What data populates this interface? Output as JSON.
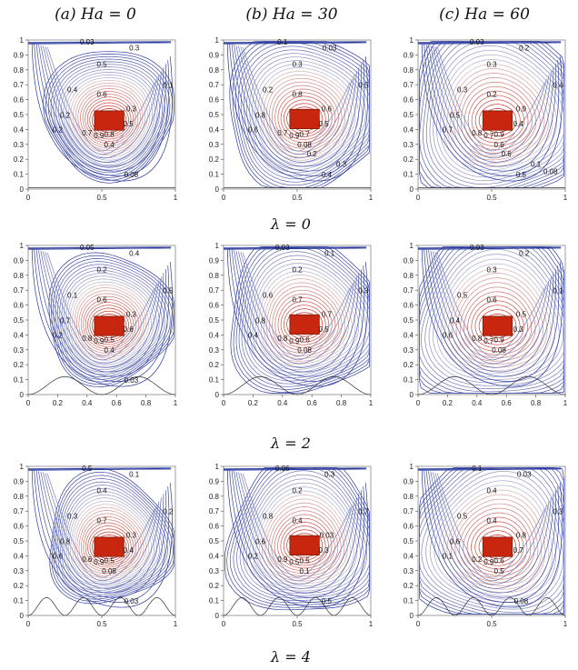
{
  "columns": [
    {
      "label": "(a)  Ha = 0"
    },
    {
      "label": "(b)  Ha = 30"
    },
    {
      "label": "(c)  Ha = 60"
    }
  ],
  "rows": [
    {
      "label": "λ = 0"
    },
    {
      "label": "λ = 2"
    },
    {
      "label": "λ = 4"
    }
  ],
  "axes": {
    "x_ticks": [
      "0",
      "0.5",
      "1"
    ],
    "x_ticks_fine": [
      "0",
      "0.2",
      "0.4",
      "0.6",
      "0.8",
      "1"
    ],
    "y_ticks": [
      "0",
      "0.1",
      "0.2",
      "0.3",
      "0.4",
      "0.5",
      "0.6",
      "0.7",
      "0.8",
      "0.9",
      "1"
    ]
  },
  "colors": {
    "cold": "#2b3a9e",
    "hot": "#cc2a1a",
    "block": "#c8260f"
  },
  "panels": [
    {
      "row": 0,
      "col": 0,
      "labels": [
        "0.03",
        "0.3",
        "0.5",
        "0.1",
        "0.4",
        "0.6",
        "0.2",
        "0.7",
        "0.8",
        "0.9",
        "0.3",
        "0.5",
        "0.2",
        "0.4",
        "0.08"
      ]
    },
    {
      "row": 0,
      "col": 1,
      "labels": [
        "0.1",
        "0.03",
        "0.3",
        "0.5",
        "0.2",
        "0.8",
        "0.8",
        "0.7",
        "0.7",
        "0.9",
        "0.6",
        "0.5",
        "0.6",
        "0.08",
        "0.4",
        "0.3",
        "0.2"
      ]
    },
    {
      "row": 0,
      "col": 2,
      "labels": [
        "0.03",
        "0.2",
        "0.3",
        "0.4",
        "0.3",
        "0.2",
        "0.5",
        "0.8",
        "0.9",
        "0.7",
        "0.9",
        "0.4",
        "0.7",
        "0.6",
        "0.5",
        "0.1",
        "0.6",
        "0.08"
      ]
    },
    {
      "row": 1,
      "col": 0,
      "labels": [
        "0.05",
        "0.4",
        "0.2",
        "0.5",
        "0.1",
        "0.6",
        "0.7",
        "0.8",
        "0.5",
        "0.9",
        "0.3",
        "0.6",
        "0.2",
        "0.4",
        "0.03"
      ]
    },
    {
      "row": 1,
      "col": 1,
      "labels": [
        "0.03",
        "0.1",
        "0.2",
        "0.3",
        "0.6",
        "0.7",
        "0.8",
        "0.8",
        "0.6",
        "0.9",
        "0.7",
        "0.5",
        "0.4",
        "0.08"
      ]
    },
    {
      "row": 1,
      "col": 2,
      "labels": [
        "0.03",
        "0.2",
        "0.3",
        "0.1",
        "0.5",
        "0.6",
        "0.4",
        "0.8",
        "0.9",
        "0.7",
        "0.5",
        "0.3",
        "0.6",
        "0.08"
      ]
    },
    {
      "row": 2,
      "col": 0,
      "labels": [
        "0.5",
        "0.1",
        "0.4",
        "0.2",
        "0.3",
        "0.7",
        "0.8",
        "0.6",
        "0.5",
        "0.9",
        "0.3",
        "0.4",
        "0.6",
        "0.08",
        "0.03"
      ]
    },
    {
      "row": 2,
      "col": 1,
      "labels": [
        "0.06",
        "0.3",
        "0.2",
        "0.7",
        "0.8",
        "0.4",
        "0.6",
        "0.9",
        "0.5",
        "0.5",
        "0.03",
        "0.3",
        "0.2",
        "0.1",
        "0.5"
      ]
    },
    {
      "row": 2,
      "col": 2,
      "labels": [
        "0.1",
        "0.03",
        "0.4",
        "0.3",
        "0.5",
        "0.4",
        "0.6",
        "0.2",
        "0.6",
        "0.9",
        "0.8",
        "0.7",
        "0.1",
        "0.5",
        "0.08"
      ]
    }
  ]
}
